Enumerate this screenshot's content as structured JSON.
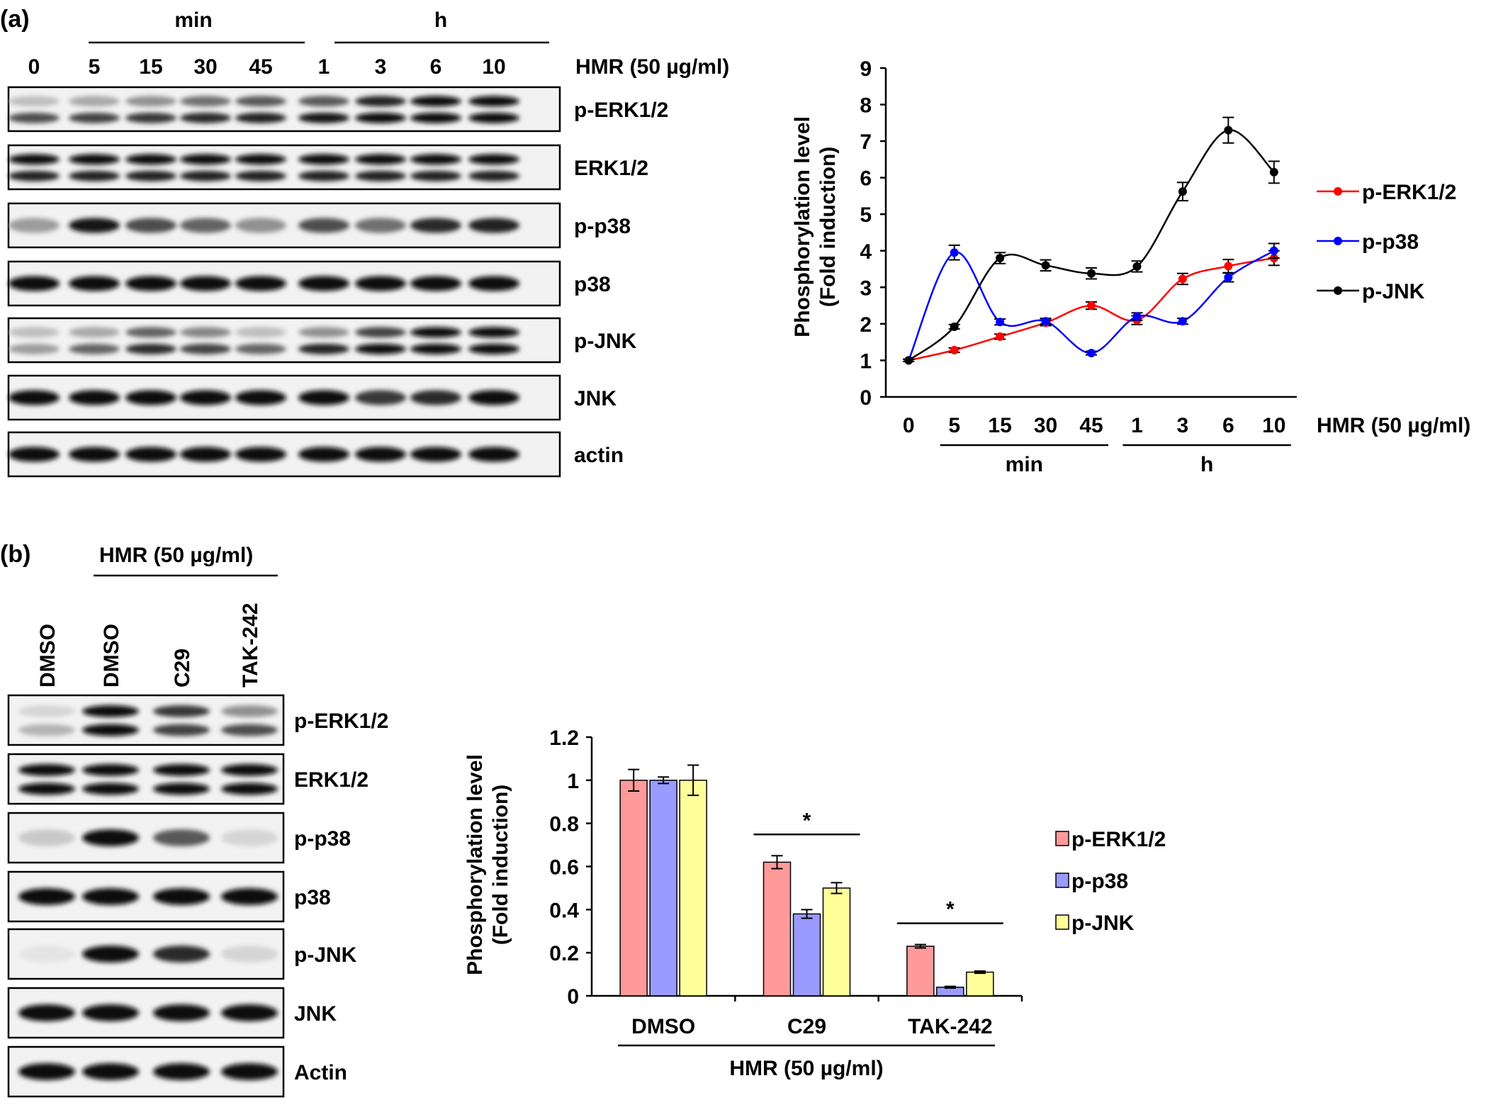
{
  "panel_a": {
    "label": "(a)",
    "blot": {
      "lanes": [
        "0",
        "5",
        "15",
        "30",
        "45",
        "1",
        "3",
        "6",
        "10"
      ],
      "group_min": "min",
      "group_h": "h",
      "treatment": "HMR (50 µg/ml)",
      "rows": [
        {
          "label": "p-ERK1/2",
          "bands": [
            [
              0.2,
              0.7
            ],
            [
              0.3,
              0.75
            ],
            [
              0.4,
              0.8
            ],
            [
              0.55,
              0.85
            ],
            [
              0.65,
              0.9
            ],
            [
              0.65,
              0.95
            ],
            [
              0.9,
              1.0
            ],
            [
              1.0,
              1.0
            ],
            [
              1.0,
              1.0
            ]
          ]
        },
        {
          "label": "ERK1/2",
          "bands": [
            [
              1.0,
              0.9
            ],
            [
              1.0,
              0.9
            ],
            [
              1.0,
              0.9
            ],
            [
              1.0,
              0.9
            ],
            [
              1.0,
              0.9
            ],
            [
              1.0,
              0.9
            ],
            [
              1.0,
              0.9
            ],
            [
              1.0,
              0.9
            ],
            [
              1.0,
              0.9
            ]
          ]
        },
        {
          "label": "p-p38",
          "bands": [
            [
              0.35
            ],
            [
              0.95
            ],
            [
              0.7
            ],
            [
              0.6
            ],
            [
              0.4
            ],
            [
              0.7
            ],
            [
              0.55
            ],
            [
              0.85
            ],
            [
              0.9
            ]
          ]
        },
        {
          "label": "p38",
          "bands": [
            [
              1.0
            ],
            [
              1.0
            ],
            [
              1.0
            ],
            [
              1.0
            ],
            [
              1.0
            ],
            [
              1.0
            ],
            [
              1.0
            ],
            [
              1.0
            ],
            [
              1.0
            ]
          ]
        },
        {
          "label": "p-JNK",
          "bands": [
            [
              0.2,
              0.35
            ],
            [
              0.3,
              0.6
            ],
            [
              0.6,
              0.85
            ],
            [
              0.45,
              0.75
            ],
            [
              0.2,
              0.6
            ],
            [
              0.4,
              0.9
            ],
            [
              0.75,
              1.0
            ],
            [
              1.0,
              1.0
            ],
            [
              1.0,
              1.0
            ]
          ]
        },
        {
          "label": "JNK",
          "bands": [
            [
              1.0
            ],
            [
              1.0
            ],
            [
              1.0
            ],
            [
              1.0
            ],
            [
              1.0
            ],
            [
              1.0
            ],
            [
              0.8
            ],
            [
              0.85
            ],
            [
              1.0
            ]
          ]
        },
        {
          "label": "actin",
          "bands": [
            [
              1.0
            ],
            [
              1.0
            ],
            [
              1.0
            ],
            [
              1.0
            ],
            [
              1.0
            ],
            [
              1.0
            ],
            [
              1.0
            ],
            [
              1.0
            ],
            [
              1.0
            ]
          ]
        }
      ]
    }
  },
  "panel_b": {
    "label": "(b)",
    "blot": {
      "treatment": "HMR (50 µg/ml)",
      "lanes": [
        "DMSO",
        "DMSO",
        "C29",
        "TAK-242"
      ],
      "rows": [
        {
          "label": "p-ERK1/2",
          "bands": [
            [
              0.1,
              0.25
            ],
            [
              1.0,
              1.0
            ],
            [
              0.8,
              0.75
            ],
            [
              0.4,
              0.7
            ]
          ]
        },
        {
          "label": "ERK1/2",
          "bands": [
            [
              1.0,
              1.0
            ],
            [
              1.0,
              1.0
            ],
            [
              1.0,
              1.0
            ],
            [
              1.0,
              1.0
            ]
          ]
        },
        {
          "label": "p-p38",
          "bands": [
            [
              0.15
            ],
            [
              1.0
            ],
            [
              0.65
            ],
            [
              0.1
            ]
          ]
        },
        {
          "label": "p38",
          "bands": [
            [
              1.0
            ],
            [
              1.0
            ],
            [
              1.0
            ],
            [
              1.0
            ]
          ]
        },
        {
          "label": "p-JNK",
          "bands": [
            [
              0.03
            ],
            [
              1.0
            ],
            [
              0.85
            ],
            [
              0.1
            ]
          ]
        },
        {
          "label": "JNK",
          "bands": [
            [
              1.0
            ],
            [
              1.0
            ],
            [
              1.0
            ],
            [
              1.0
            ]
          ]
        },
        {
          "label": "Actin",
          "bands": [
            [
              1.0
            ],
            [
              1.0
            ],
            [
              1.0
            ],
            [
              1.0
            ]
          ]
        }
      ]
    }
  },
  "chart_data": [
    {
      "type": "line",
      "categories": [
        "0",
        "5",
        "15",
        "30",
        "45",
        "1",
        "3",
        "6",
        "10"
      ],
      "group_labels": [
        {
          "label": "min",
          "from": 1,
          "to": 4
        },
        {
          "label": "h",
          "from": 5,
          "to": 8
        }
      ],
      "xlabel": "HMR (50 µg/ml)",
      "ylabel": [
        "Phosphorylation level",
        "(Fold induction)"
      ],
      "ylim": [
        0,
        9
      ],
      "yticks": [
        "0",
        "1",
        "2",
        "3",
        "4",
        "5",
        "6",
        "7",
        "8",
        "9"
      ],
      "legend": "right",
      "series": [
        {
          "name": "p-ERK1/2",
          "color": "#ff0000",
          "values": [
            1.0,
            1.28,
            1.65,
            2.03,
            2.5,
            2.1,
            3.23,
            3.58,
            3.8
          ],
          "errors": [
            0.03,
            0.06,
            0.07,
            0.08,
            0.1,
            0.12,
            0.15,
            0.18,
            0.2
          ]
        },
        {
          "name": "p-p38",
          "color": "#0000ff",
          "values": [
            1.0,
            3.95,
            2.05,
            2.07,
            1.2,
            2.2,
            2.07,
            3.27,
            4.0
          ],
          "errors": [
            0.03,
            0.2,
            0.08,
            0.08,
            0.05,
            0.1,
            0.08,
            0.12,
            0.2
          ]
        },
        {
          "name": "p-JNK",
          "color": "#000000",
          "values": [
            1.0,
            1.92,
            3.8,
            3.6,
            3.38,
            3.57,
            5.62,
            7.3,
            6.15
          ],
          "errors": [
            0.03,
            0.06,
            0.15,
            0.15,
            0.15,
            0.15,
            0.25,
            0.35,
            0.3
          ]
        }
      ]
    },
    {
      "type": "bar",
      "categories": [
        "DMSO",
        "C29",
        "TAK-242"
      ],
      "xlabel": "HMR (50 µg/ml)",
      "ylabel": [
        "Phosphorylation level",
        "(Fold induction)"
      ],
      "ylim": [
        0,
        1.2
      ],
      "yticks": [
        "0",
        "0.2",
        "0.4",
        "0.6",
        "0.8",
        "1",
        "1.2"
      ],
      "legend": "right",
      "annotations": [
        "*",
        "*"
      ],
      "series": [
        {
          "name": "p-ERK1/2",
          "color": "#ff9a9a",
          "values": [
            1.0,
            0.62,
            0.23
          ],
          "errors": [
            0.05,
            0.03,
            0.008
          ]
        },
        {
          "name": "p-p38",
          "color": "#9a9aff",
          "values": [
            1.0,
            0.38,
            0.04
          ],
          "errors": [
            0.015,
            0.02,
            0.004
          ]
        },
        {
          "name": "p-JNK",
          "color": "#ffff9a",
          "values": [
            1.0,
            0.5,
            0.11
          ],
          "errors": [
            0.07,
            0.025,
            0.005
          ]
        }
      ]
    }
  ]
}
